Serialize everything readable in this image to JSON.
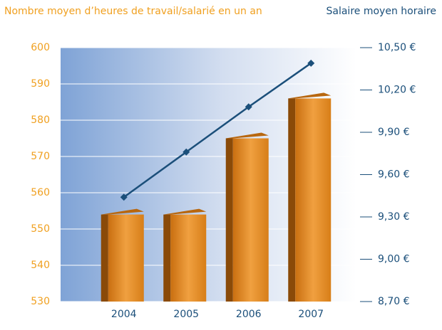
{
  "chart_data": {
    "type": "bar",
    "y_label": "Nombre moyen d’heures de travail/salarié en un an",
    "y2_label": "Salaire moyen horaire",
    "categories": [
      "2004",
      "2005",
      "2006",
      "2007"
    ],
    "series": [
      {
        "type": "bar",
        "color": "#e08a1e",
        "values": [
          554,
          554,
          575,
          586
        ]
      },
      {
        "type": "line",
        "axis": "y2",
        "color": "#1b4f7a",
        "values": [
          9.44,
          9.76,
          10.08,
          10.39
        ]
      }
    ],
    "ylim": [
      530,
      600
    ],
    "yticks": [
      530,
      540,
      550,
      560,
      570,
      580,
      590,
      600
    ],
    "y2lim": [
      8.7,
      10.5
    ],
    "y2ticks": [
      {
        "value": 8.7,
        "label": "8,70 €"
      },
      {
        "value": 9.0,
        "label": "9,00 €"
      },
      {
        "value": 9.3,
        "label": "9,30 €"
      },
      {
        "value": 9.6,
        "label": "9,60 €"
      },
      {
        "value": 9.9,
        "label": "9,90 €"
      },
      {
        "value": 10.2,
        "label": "10,20 €"
      },
      {
        "value": 10.5,
        "label": "10,50 €"
      }
    ],
    "grid": true
  }
}
